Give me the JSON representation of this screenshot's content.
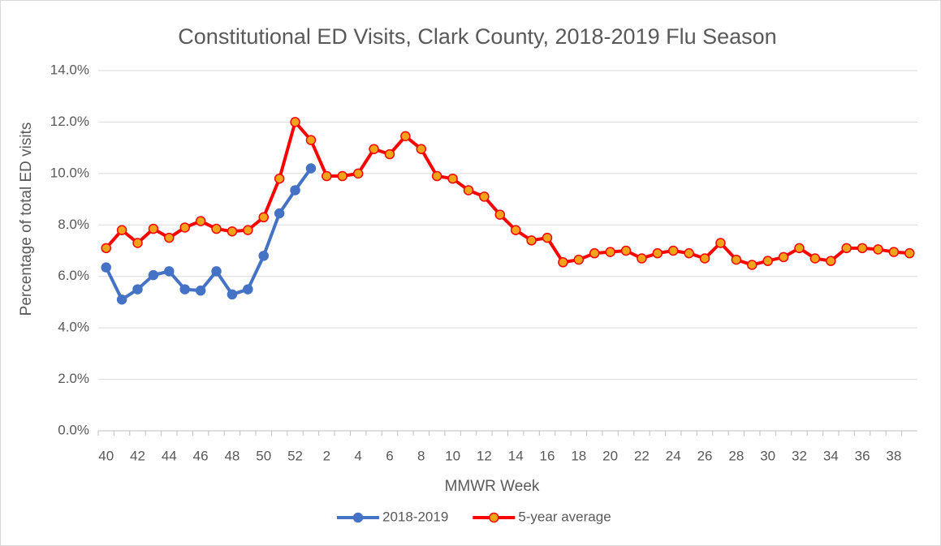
{
  "chart_data": {
    "type": "line",
    "title": "Constitutional ED Visits, Clark County, 2018-2019 Flu Season",
    "x_label": "MMWR Week",
    "y_label": "Percentage of total ED visits",
    "categories": [
      "40",
      null,
      "42",
      null,
      "44",
      null,
      "46",
      null,
      "48",
      null,
      "50",
      null,
      "52",
      null,
      "2",
      null,
      "4",
      null,
      "6",
      null,
      "8",
      null,
      "10",
      null,
      "12",
      null,
      "14",
      null,
      "16",
      null,
      "18",
      null,
      "20",
      null,
      "22",
      null,
      "24",
      null,
      "26",
      null,
      "28",
      null,
      "30",
      null,
      "32",
      null,
      "34",
      null,
      "36",
      null,
      "38",
      null
    ],
    "ylim": [
      0,
      14
    ],
    "yticks": [
      {
        "value": 0,
        "label": "0.0%"
      },
      {
        "value": 2,
        "label": "2.0%"
      },
      {
        "value": 4,
        "label": "4.0%"
      },
      {
        "value": 6,
        "label": "6.0%"
      },
      {
        "value": 8,
        "label": "8.0%"
      },
      {
        "value": 10,
        "label": "10.0%"
      },
      {
        "value": 12,
        "label": "12.0%"
      },
      {
        "value": 14,
        "label": "14.0%"
      }
    ],
    "grid": true,
    "legend": "bottom",
    "series": [
      {
        "name": "2018-2019",
        "color": "#4472c4",
        "marker_color": "#4472c4",
        "values": [
          6.35,
          5.1,
          5.5,
          6.05,
          6.2,
          5.5,
          5.45,
          6.2,
          5.3,
          5.5,
          6.8,
          8.45,
          9.35,
          10.2,
          null,
          null,
          null,
          null,
          null,
          null,
          null,
          null,
          null,
          null,
          null,
          null,
          null,
          null,
          null,
          null,
          null,
          null,
          null,
          null,
          null,
          null,
          null,
          null,
          null,
          null,
          null,
          null,
          null,
          null,
          null,
          null,
          null,
          null,
          null,
          null,
          null,
          null
        ]
      },
      {
        "name": "5-year average",
        "color": "#ff0000",
        "marker_color": "#f5a31a",
        "values": [
          7.1,
          7.8,
          7.3,
          7.85,
          7.5,
          7.9,
          8.15,
          7.85,
          7.75,
          7.8,
          8.3,
          9.8,
          12.0,
          11.3,
          9.9,
          9.9,
          10.0,
          10.95,
          10.75,
          11.45,
          10.95,
          9.9,
          9.8,
          9.35,
          9.1,
          8.4,
          7.8,
          7.4,
          7.5,
          6.55,
          6.65,
          6.9,
          6.95,
          7.0,
          6.7,
          6.9,
          7.0,
          6.9,
          6.7,
          7.3,
          6.65,
          6.45,
          6.6,
          6.75,
          7.1,
          6.7,
          6.6,
          7.1,
          7.1,
          7.05,
          6.95,
          6.9
        ]
      }
    ]
  }
}
